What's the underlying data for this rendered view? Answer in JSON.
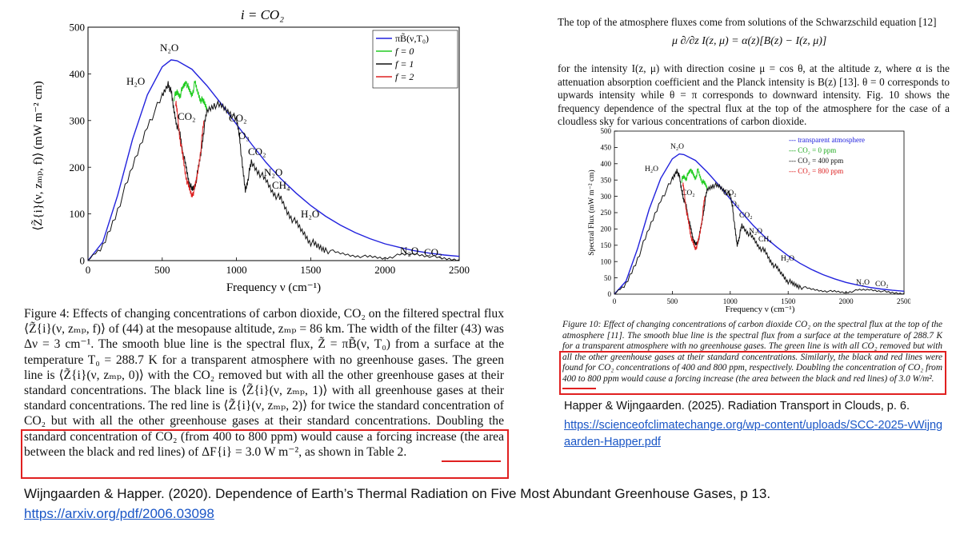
{
  "left_figure": {
    "title": "i = CO₂",
    "ylabel": "⟨Z̃{i}(ν, zₘₚ, f)⟩ (mW m⁻² cm)",
    "xlabel": "Frequency ν (cm⁻¹)",
    "legend": [
      "πB̃(ν,T₀)",
      "f = 0",
      "f = 1",
      "f = 2"
    ],
    "annotations": [
      "N₂O",
      "H₂O",
      "CO₂",
      "CO₂",
      "O₃",
      "CO₂",
      "N₂O",
      "CH₄",
      "H₂O",
      "N₂O",
      "CO₂"
    ],
    "caption": "Figure 4: Effects of changing concentrations of carbon dioxide, CO₂ on the filtered spectral flux ⟨Z̃{i}(ν, zₘₚ, f)⟩ of (44) at the mesopause altitude, zₘₚ = 86 km. The width of the filter (43) was Δν = 3 cm⁻¹. The smooth blue line is the spectral flux, Z̃ = πB̃(ν, T₀) from a surface at the temperature T₀ = 288.7 K for a transparent atmosphere with no greenhouse gases. The green line is ⟨Z̃{i}(ν, zₘₚ, 0)⟩ with the CO₂ removed but with all the other greenhouse gases at their standard concentrations. The black line is ⟨Z̃{i}(ν, zₘₚ, 1)⟩ with all greenhouse gases at their standard concentrations. The red line is ⟨Z̃{i}(ν, zₘₚ, 2)⟩ for twice the standard concentration of CO₂ but with all the other greenhouse gases at their standard concentrations. Doubling the standard concentration of CO₂ (from 400 to 800 ppm) would cause a forcing increase (the area between the black and red lines) of ΔF{i} = 3.0 W m⁻², as shown in Table 2."
  },
  "right_text": {
    "para1": "The top of the atmosphere fluxes come from solutions of the Schwarzschild equation [12]",
    "equation": "μ ∂/∂z I(z, μ) = α(z)[B(z) − I(z, μ)]",
    "para2": "for the intensity I(z, μ) with direction cosine μ = cos θ, at the altitude z, where α is the attenuation absorption coefficient and the Planck intensity is B(z) [13]. θ = 0 corresponds to upwards intensity while θ = π corresponds to downward intensity. Fig. 10 shows the frequency dependence of the spectral flux at the top of the atmosphere for the case of a cloudless sky for various concentrations of carbon dioxide."
  },
  "right_figure": {
    "ylabel": "Spectral Flux (mW m⁻² cm)",
    "xlabel": "Frequency ν (cm⁻¹)",
    "legend": [
      "--- transparent atmosphere",
      "--- CO₂ = 0 ppm",
      "--- CO₂ = 400 ppm",
      "--- CO₂ = 800 ppm"
    ],
    "annotations": [
      "N₂O",
      "H₂O",
      "CO₂",
      "CO₂",
      "O₃",
      "CO₂",
      "N₂O",
      "CH₄",
      "H₂O",
      "N₂O",
      "CO₂"
    ],
    "caption": "Figure 10: Effect of changing concentrations of carbon dioxide CO₂ on the spectral flux at the top of the atmosphere [11]. The smooth blue line is the spectral flux from a surface at the temperature of 288.7 K for a transparent atmosphere with no greenhouse gases. The green line is with all CO₂ removed but with all the other greenhouse gases at their standard concentrations. Similarly, the black and red lines were found for CO₂ concentrations of 400 and 800 ppm, respectively. Doubling the concentration of CO₂ from 400 to 800 ppm would cause a forcing increase (the area between the black and red lines) of 3.0 W/m²."
  },
  "refs": {
    "right_citation": "Happer & Wijngaarden. (2025). Radiation Transport in Clouds, p. 6.",
    "right_url": "https://scienceofclimatechange.org/wp-content/uploads/SCC-2025-vWijngaarden-Happer.pdf",
    "bottom_citation": "Wijngaarden & Happer. (2020). Dependence of Earth’s Thermal Radiation on Five Most Abundant Greenhouse Gases, p 13.",
    "bottom_url": "https://arxiv.org/pdf/2006.03098"
  },
  "colors": {
    "planck": "#2222dd",
    "f0": "#22cc22",
    "f1": "#111111",
    "f2": "#dd2222",
    "box": "#e02020",
    "link": "#1a56c6"
  },
  "chart_data": [
    {
      "type": "line",
      "title": "i = CO₂",
      "xlabel": "Frequency ν (cm⁻¹)",
      "ylabel": "⟨Z̃{i}(ν, zₘₚ, f)⟩ (mW m⁻² cm)",
      "xlim": [
        0,
        2500
      ],
      "ylim": [
        0,
        500
      ],
      "xticks": [
        0,
        500,
        1000,
        1500,
        2000,
        2500
      ],
      "yticks": [
        0,
        100,
        200,
        300,
        400,
        500
      ],
      "series": [
        {
          "name": "πB̃(ν,T₀)",
          "color": "#2222dd",
          "x": [
            0,
            100,
            200,
            300,
            400,
            500,
            560,
            600,
            700,
            800,
            900,
            1000,
            1100,
            1200,
            1300,
            1400,
            1500,
            1600,
            1700,
            1800,
            1900,
            2000,
            2100,
            2200,
            2300,
            2400,
            2500
          ],
          "y": [
            0,
            40,
            140,
            260,
            355,
            415,
            430,
            428,
            410,
            375,
            335,
            292,
            250,
            210,
            175,
            145,
            118,
            95,
            76,
            60,
            47,
            36,
            28,
            21,
            16,
            12,
            9
          ]
        },
        {
          "name": "f = 1",
          "color": "#111111",
          "x": [
            0,
            100,
            200,
            300,
            400,
            500,
            540,
            560,
            580,
            600,
            620,
            640,
            660,
            680,
            700,
            720,
            740,
            760,
            780,
            800,
            850,
            900,
            950,
            1000,
            1020,
            1040,
            1060,
            1080,
            1100,
            1150,
            1200,
            1250,
            1300,
            1350,
            1400,
            1450,
            1500,
            1550,
            1600,
            1700,
            1800,
            1900,
            2000,
            2100,
            2200,
            2300,
            2400,
            2500
          ],
          "y": [
            0,
            30,
            110,
            200,
            290,
            350,
            380,
            360,
            320,
            290,
            270,
            230,
            200,
            170,
            150,
            160,
            190,
            230,
            280,
            320,
            335,
            330,
            320,
            300,
            270,
            200,
            150,
            180,
            210,
            190,
            170,
            145,
            130,
            100,
            80,
            60,
            40,
            30,
            25,
            15,
            10,
            8,
            5,
            12,
            14,
            10,
            4,
            2
          ]
        },
        {
          "name": "f = 0",
          "color": "#22cc22",
          "x": [
            580,
            600,
            620,
            640,
            660,
            680,
            700,
            720,
            740,
            760,
            780,
            800
          ],
          "y": [
            350,
            360,
            355,
            370,
            385,
            365,
            355,
            380,
            360,
            345,
            340,
            330
          ]
        },
        {
          "name": "f = 2",
          "color": "#dd2222",
          "x": [
            590,
            600,
            620,
            640,
            660,
            680,
            700,
            720,
            740,
            760,
            780
          ],
          "y": [
            340,
            320,
            260,
            220,
            180,
            155,
            140,
            155,
            190,
            240,
            300
          ]
        }
      ]
    },
    {
      "type": "line",
      "xlabel": "Frequency ν (cm⁻¹)",
      "ylabel": "Spectral Flux (mW m⁻² cm)",
      "xlim": [
        0,
        2500
      ],
      "ylim": [
        0,
        500
      ],
      "xticks": [
        0,
        500,
        1000,
        1500,
        2000,
        2500
      ],
      "yticks": [
        0,
        50,
        100,
        150,
        200,
        250,
        300,
        350,
        400,
        450,
        500
      ],
      "series": [
        {
          "name": "transparent atmosphere",
          "color": "#2222dd",
          "x": [
            0,
            100,
            200,
            300,
            400,
            500,
            560,
            600,
            700,
            800,
            900,
            1000,
            1100,
            1200,
            1300,
            1400,
            1500,
            1600,
            1700,
            1800,
            1900,
            2000,
            2100,
            2200,
            2300,
            2400,
            2500
          ],
          "y": [
            0,
            40,
            140,
            260,
            355,
            415,
            430,
            428,
            410,
            375,
            335,
            292,
            250,
            210,
            175,
            145,
            118,
            95,
            76,
            60,
            47,
            36,
            28,
            21,
            16,
            12,
            9
          ]
        },
        {
          "name": "CO₂ = 400 ppm",
          "color": "#111111",
          "x": [
            0,
            100,
            200,
            300,
            400,
            500,
            540,
            560,
            580,
            600,
            620,
            640,
            660,
            680,
            700,
            720,
            740,
            760,
            780,
            800,
            850,
            900,
            950,
            1000,
            1020,
            1040,
            1060,
            1080,
            1100,
            1150,
            1200,
            1250,
            1300,
            1350,
            1400,
            1450,
            1500,
            1550,
            1600,
            1700,
            1800,
            1900,
            2000,
            2100,
            2200,
            2300,
            2400,
            2500
          ],
          "y": [
            0,
            30,
            110,
            200,
            290,
            350,
            380,
            360,
            320,
            290,
            270,
            230,
            200,
            170,
            150,
            160,
            190,
            230,
            280,
            320,
            335,
            330,
            320,
            300,
            270,
            200,
            150,
            180,
            210,
            190,
            170,
            145,
            130,
            100,
            80,
            60,
            40,
            30,
            25,
            15,
            10,
            8,
            5,
            12,
            14,
            10,
            4,
            2
          ]
        },
        {
          "name": "CO₂ = 0 ppm",
          "color": "#22cc22",
          "x": [
            580,
            600,
            620,
            640,
            660,
            680,
            700,
            720,
            740,
            760,
            780,
            800
          ],
          "y": [
            350,
            360,
            355,
            370,
            385,
            365,
            355,
            380,
            360,
            345,
            340,
            330
          ]
        },
        {
          "name": "CO₂ = 800 ppm",
          "color": "#dd2222",
          "x": [
            590,
            600,
            620,
            640,
            660,
            680,
            700,
            720,
            740,
            760,
            780
          ],
          "y": [
            340,
            320,
            260,
            220,
            180,
            155,
            140,
            155,
            190,
            240,
            300
          ]
        }
      ]
    }
  ]
}
